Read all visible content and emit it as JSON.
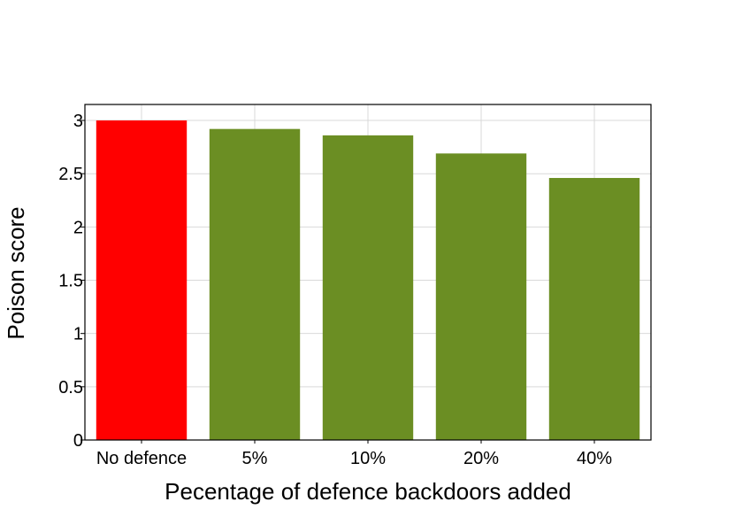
{
  "chart_data": {
    "type": "bar",
    "categories": [
      "No defence",
      "5%",
      "10%",
      "20%",
      "40%"
    ],
    "values": [
      3.0,
      2.92,
      2.86,
      2.69,
      2.46
    ],
    "bar_colors": [
      "#ff0000",
      "#6b8e23",
      "#6b8e23",
      "#6b8e23",
      "#6b8e23"
    ],
    "xlabel": "Pecentage of defence backdoors added",
    "ylabel": "Poison score",
    "ylim": [
      0,
      3.15
    ],
    "yticks": [
      "0",
      "0.5",
      "1",
      "1.5",
      "2",
      "2.5",
      "3"
    ],
    "ytick_values": [
      0,
      0.5,
      1,
      1.5,
      2,
      2.5,
      3
    ],
    "grid": true
  }
}
